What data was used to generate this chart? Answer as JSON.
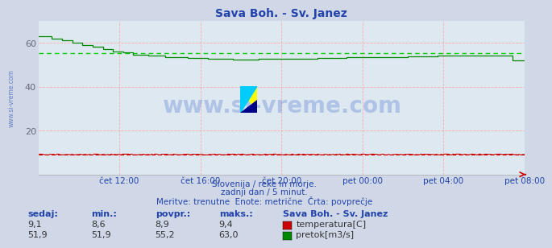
{
  "title": "Sava Boh. - Sv. Janez",
  "title_color": "#2244aa",
  "bg_color": "#d0d8e8",
  "plot_bg_color": "#dde8f0",
  "ylim": [
    0,
    70
  ],
  "yticks": [
    20,
    40,
    60
  ],
  "x_labels": [
    "čet 12:00",
    "čet 16:00",
    "čet 20:00",
    "pet 00:00",
    "pet 04:00",
    "pet 08:00"
  ],
  "x_label_color": "#2244aa",
  "temp_color": "#cc0000",
  "flow_color": "#008800",
  "avg_flow_color": "#00cc00",
  "avg_temp_color": "#cc0000",
  "watermark_text": "www.si-vreme.com",
  "watermark_color": "#2255cc",
  "watermark_alpha": 0.25,
  "subtitle1": "Slovenija / reke in morje.",
  "subtitle2": "zadnji dan / 5 minut.",
  "subtitle3": "Meritve: trenutne  Enote: metrične  Črta: povprečje",
  "subtitle_color": "#2244aa",
  "table_header": "Sava Boh. - Sv. Janez",
  "table_cols": [
    "sedaj:",
    "min.:",
    "povpr.:",
    "maks.:"
  ],
  "temp_row": [
    "9,1",
    "8,6",
    "8,9",
    "9,4"
  ],
  "flow_row": [
    "51,9",
    "51,9",
    "55,2",
    "63,0"
  ],
  "temp_label": "temperatura[C]",
  "flow_label": "pretok[m3/s]",
  "avg_flow": 55.2,
  "avg_temp": 8.9,
  "num_points": 288,
  "left_label": "www.si-vreme.com",
  "tick_color": "#666677",
  "grid_color": "#ffaaaa",
  "spine_color": "#aaaaaa"
}
